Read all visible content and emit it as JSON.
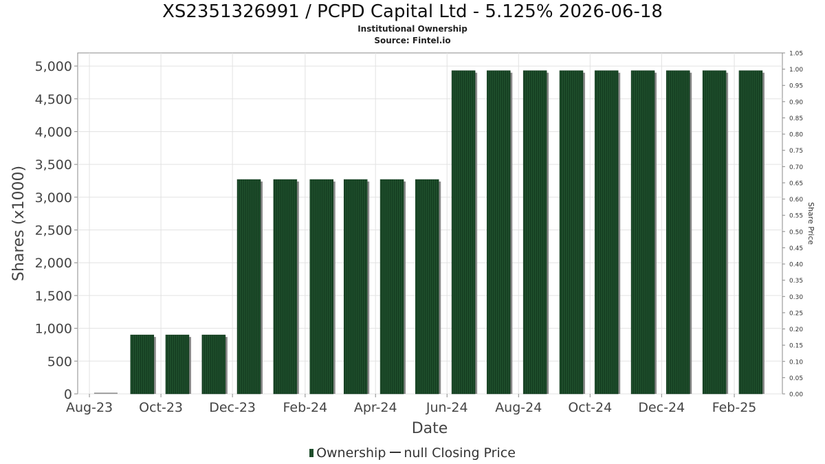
{
  "chart_data": {
    "type": "bar",
    "title": "XS2351326991 / PCPD Capital Ltd - 5.125% 2026-06-18",
    "subtitle_lines": [
      "Institutional Ownership",
      "Source: Fintel.io"
    ],
    "xlabel": "Date",
    "ylabel": "Shares (x1000)",
    "y2label": "Share Price",
    "x_tick_labels": [
      "Aug-23",
      "Oct-23",
      "Dec-23",
      "Feb-24",
      "Apr-24",
      "Jun-24",
      "Aug-24",
      "Oct-24",
      "Dec-24",
      "Feb-25"
    ],
    "y_tick_labels": [
      "0",
      "500",
      "1,000",
      "1,500",
      "2,000",
      "2,500",
      "3,000",
      "3,500",
      "4,000",
      "4,500",
      "5,000"
    ],
    "y2_tick_labels": [
      "0.00",
      "0.05",
      "0.10",
      "0.15",
      "0.20",
      "0.25",
      "0.30",
      "0.35",
      "0.40",
      "0.45",
      "0.50",
      "0.55",
      "0.60",
      "0.65",
      "0.70",
      "0.75",
      "0.80",
      "0.85",
      "0.90",
      "0.95",
      "1.00",
      "1.05"
    ],
    "ylim": [
      0,
      5200
    ],
    "y2lim": [
      0,
      1.05
    ],
    "grid": true,
    "legend_position": "bottom",
    "categories": [
      "2023-08-15",
      "2023-09-15",
      "2023-10-15",
      "2023-11-15",
      "2023-12-15",
      "2024-01-15",
      "2024-02-15",
      "2024-03-15",
      "2024-04-15",
      "2024-05-15",
      "2024-06-15",
      "2024-07-15",
      "2024-08-15",
      "2024-09-15",
      "2024-10-15",
      "2024-11-15",
      "2024-12-15",
      "2025-01-15",
      "2025-02-15"
    ],
    "series": [
      {
        "name": "Ownership",
        "values": [
          0,
          900,
          900,
          900,
          3270,
          3270,
          3270,
          3270,
          3270,
          3270,
          4930,
          4930,
          4930,
          4930,
          4930,
          4930,
          4930,
          4930,
          4930
        ]
      }
    ],
    "legend": {
      "ownership": "Ownership",
      "price": "null Closing Price"
    },
    "colors": {
      "bar": "#1e4d2b",
      "bar_stripe": "#123a1e",
      "bar_shadow": "#8a8a8a",
      "grid": "#e2e2e2",
      "axis": "#888888"
    }
  }
}
